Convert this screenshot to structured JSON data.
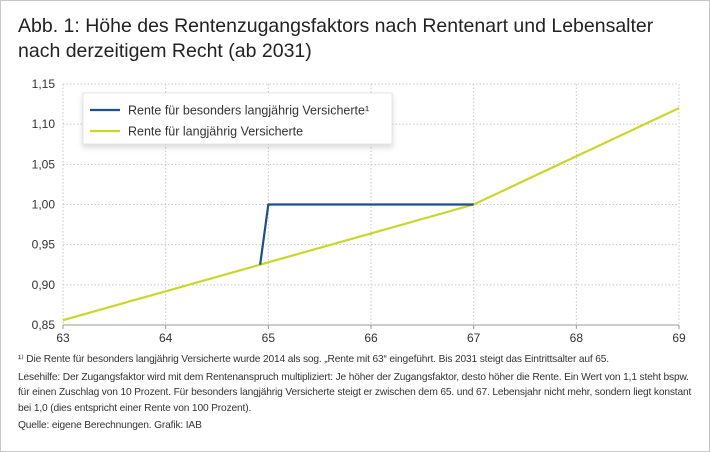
{
  "title": "Abb. 1: Höhe des Rentenzugangsfaktors nach Rentenart und Lebensalter nach derzeitigem Recht (ab 2031)",
  "chart_data": {
    "type": "line",
    "title": "Abb. 1: Höhe des Rentenzugangsfaktors nach Rentenart und Lebensalter nach derzeitigem Recht (ab 2031)",
    "xlabel": "",
    "ylabel": "",
    "xlim": [
      63,
      69
    ],
    "ylim": [
      0.85,
      1.15
    ],
    "x_ticks": [
      "63",
      "64",
      "65",
      "66",
      "67",
      "68",
      "69"
    ],
    "y_ticks": [
      "0,85",
      "0,90",
      "0,95",
      "1,00",
      "1,05",
      "1,10",
      "1,15"
    ],
    "grid": true,
    "legend_placement": "top-left",
    "series": [
      {
        "name": "Rente für besonders langjährig Versicherte¹",
        "color": "#1f4e8c",
        "points": [
          [
            64.92,
            0.925
          ],
          [
            65,
            1.0
          ],
          [
            67,
            1.0
          ]
        ]
      },
      {
        "name": "Rente für langjährig Versicherte",
        "color": "#c8d72a",
        "points": [
          [
            63,
            0.856
          ],
          [
            64,
            0.892
          ],
          [
            65,
            0.928
          ],
          [
            66,
            0.964
          ],
          [
            67,
            1.0
          ],
          [
            68,
            1.06
          ],
          [
            69,
            1.12
          ]
        ]
      }
    ]
  },
  "notes": {
    "footnote": "¹⁾ Die Rente für besonders langjährig Versicherte wurde 2014 als sog. „Rente mit 63“ eingeführt. Bis 2031 steigt das Eintrittsalter auf 65.",
    "reading_aid": "Lesehilfe: Der Zugangsfaktor wird mit dem Rentenanspruch multipliziert: Je höher der Zugangsfaktor, desto höher die Rente. Ein Wert von 1,1 steht bspw. für einen Zuschlag von 10 Prozent. Für besonders langjährig Versicherte steigt er zwischen dem 65. und 67. Lebensjahr nicht mehr, sondern liegt konstant bei 1,0 (dies entspricht einer Rente von 100 Prozent).",
    "source": "Quelle: eigene Berechnungen. Grafik: IAB"
  }
}
